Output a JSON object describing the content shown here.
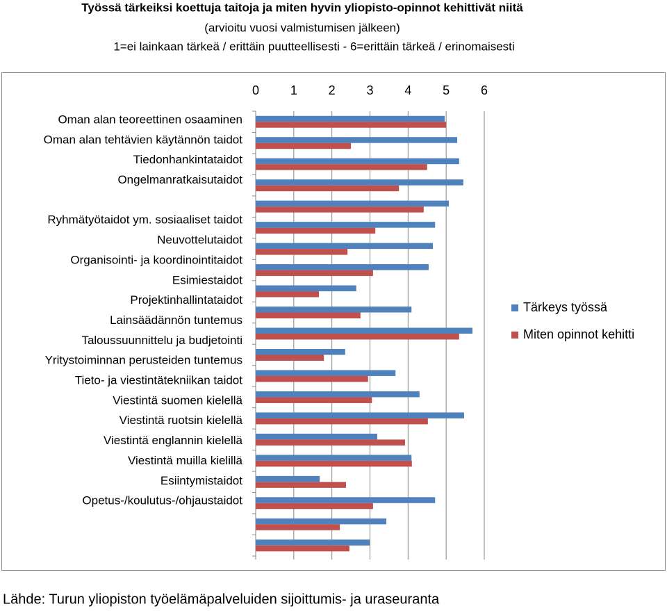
{
  "chart_data": {
    "type": "bar",
    "orientation": "horizontal",
    "title": "Työssä tärkeiksi koettuja taitoja ja miten hyvin yliopisto-opinnot kehittivät niitä",
    "subtitle": [
      "(arvioitu vuosi valmistumisen jälkeen)",
      "1=ei lainkaan tärkeä / erittäin puutteellisesti - 6=erittäin tärkeä / erinomaisesti"
    ],
    "categories": [
      "Oman alan teoreettinen osaaminen",
      "Oman alan tehtävien käytännön taidot",
      "Tiedonhankintataidot",
      "Ongelmanratkaisutaidot",
      null,
      "Ryhmätyötaidot ym. sosiaaliset taidot",
      "Neuvottelutaidot",
      "Organisointi- ja koordinointitaidot",
      "Esimiestaidot",
      "Projektinhallintataidot",
      "Lainsäädännön tuntemus",
      "Taloussuunnittelu ja budjetointi",
      "Yritystoiminnan perusteiden tuntemus",
      "Tieto- ja viestintätekniikan taidot",
      "Viestintä suomen kielellä",
      "Viestintä ruotsin kielellä",
      "Viestintä englannin kielellä",
      "Viestintä muilla kielillä",
      "Esiintymistaidot",
      "Opetus-/koulutus-/ohjaustaidot",
      null
    ],
    "series": [
      {
        "name": "Tärkeys työssä",
        "color": "#4f81bd",
        "values": [
          4.96,
          5.29,
          5.34,
          5.45,
          5.07,
          4.71,
          4.65,
          4.54,
          2.64,
          4.09,
          5.69,
          2.35,
          3.67,
          4.3,
          5.47,
          3.19,
          4.09,
          1.68,
          4.71,
          3.43,
          2.99
        ]
      },
      {
        "name": "Miten opinnot kehitti",
        "color": "#c0504d",
        "values": [
          5.0,
          2.5,
          4.5,
          3.76,
          4.41,
          3.14,
          2.41,
          3.08,
          1.66,
          2.75,
          5.34,
          1.79,
          2.95,
          3.05,
          4.52,
          3.92,
          4.1,
          2.37,
          3.08,
          2.21,
          2.46
        ]
      }
    ],
    "xlim": [
      0,
      6
    ],
    "xticks": [
      0,
      1,
      2,
      3,
      4,
      5,
      6
    ],
    "grid": true,
    "legend": "right",
    "source": "Lähde: Turun yliopiston työelämäpalveluiden sijoittumis- ja uraseuranta"
  }
}
